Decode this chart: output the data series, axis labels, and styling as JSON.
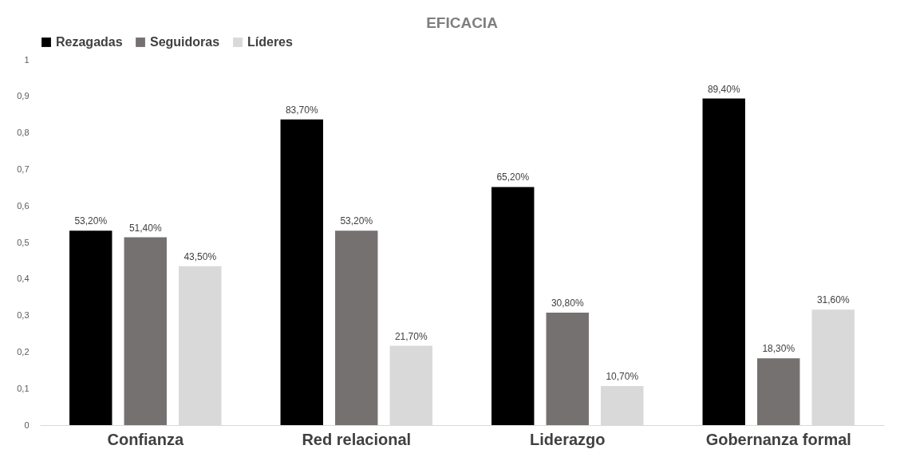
{
  "chart_data": {
    "type": "bar",
    "title": "EFICACIA",
    "categories": [
      "Confianza",
      "Red relacional",
      "Liderazgo",
      "Gobernanza formal"
    ],
    "series": [
      {
        "name": "Rezagadas",
        "color": "#000000",
        "values": [
          0.532,
          0.837,
          0.652,
          0.894
        ],
        "value_labels": [
          "53,20%",
          "83,70%",
          "65,20%",
          "89,40%"
        ]
      },
      {
        "name": "Seguidoras",
        "color": "#767171",
        "values": [
          0.514,
          0.532,
          0.308,
          0.183
        ],
        "value_labels": [
          "51,40%",
          "53,20%",
          "30,80%",
          "18,30%"
        ]
      },
      {
        "name": "Líderes",
        "color": "#d9d9d9",
        "values": [
          0.435,
          0.217,
          0.107,
          0.316
        ],
        "value_labels": [
          "43,50%",
          "21,70%",
          "10,70%",
          "31,60%"
        ]
      }
    ],
    "ylim": [
      0,
      1
    ],
    "yticks": [
      0,
      {
        "value": 0.1,
        "label": "0,1"
      },
      {
        "value": 0.2,
        "label": "0,2"
      },
      {
        "value": 0.3,
        "label": "0,3"
      },
      {
        "value": 0.4,
        "label": "0,4"
      },
      {
        "value": 0.5,
        "label": "0,5"
      },
      {
        "value": 0.6,
        "label": "0,6"
      },
      {
        "value": 0.7,
        "label": "0,7"
      },
      {
        "value": 0.8,
        "label": "0,8"
      },
      {
        "value": 0.9,
        "label": "0,9"
      },
      1
    ],
    "grid": false,
    "legend": "top"
  }
}
